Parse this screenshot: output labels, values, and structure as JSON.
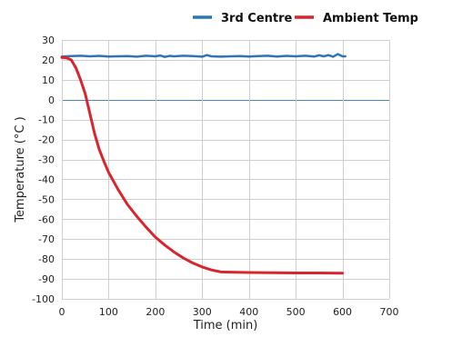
{
  "chart_data": {
    "type": "line",
    "title": "",
    "xlabel": "Time (min)",
    "ylabel": "Temperature (°C )",
    "xlim": [
      0,
      700
    ],
    "ylim": [
      -100,
      30
    ],
    "x_ticks": [
      0,
      100,
      200,
      300,
      400,
      500,
      600,
      700
    ],
    "y_ticks": [
      30,
      20,
      10,
      0,
      -10,
      -20,
      -30,
      -40,
      -50,
      -60,
      -70,
      -80,
      -90,
      -100
    ],
    "grid": true,
    "legend_position": "top-right",
    "series": [
      {
        "name": "3rd Centre",
        "color": "#2e75b6",
        "points": [
          [
            0,
            21.7
          ],
          [
            20,
            21.9
          ],
          [
            40,
            22.1
          ],
          [
            60,
            21.8
          ],
          [
            80,
            22.0
          ],
          [
            100,
            21.7
          ],
          [
            120,
            21.8
          ],
          [
            140,
            21.9
          ],
          [
            160,
            21.6
          ],
          [
            180,
            22.1
          ],
          [
            200,
            21.8
          ],
          [
            210,
            22.2
          ],
          [
            220,
            21.5
          ],
          [
            230,
            22.0
          ],
          [
            240,
            21.8
          ],
          [
            260,
            22.1
          ],
          [
            280,
            21.9
          ],
          [
            300,
            21.6
          ],
          [
            310,
            22.4
          ],
          [
            320,
            21.8
          ],
          [
            340,
            21.6
          ],
          [
            360,
            21.8
          ],
          [
            380,
            21.9
          ],
          [
            400,
            21.7
          ],
          [
            420,
            21.9
          ],
          [
            440,
            22.1
          ],
          [
            460,
            21.7
          ],
          [
            480,
            22.0
          ],
          [
            500,
            21.8
          ],
          [
            520,
            22.1
          ],
          [
            540,
            21.7
          ],
          [
            550,
            22.3
          ],
          [
            560,
            21.8
          ],
          [
            570,
            22.4
          ],
          [
            580,
            21.6
          ],
          [
            590,
            22.9
          ],
          [
            600,
            21.8
          ],
          [
            606,
            21.8
          ]
        ]
      },
      {
        "name": "Ambient Temp",
        "color": "#d7262e",
        "points": [
          [
            0,
            21.2
          ],
          [
            10,
            21.0
          ],
          [
            20,
            20.0
          ],
          [
            30,
            16.0
          ],
          [
            40,
            10.0
          ],
          [
            50,
            3.0
          ],
          [
            60,
            -7.0
          ],
          [
            70,
            -17.0
          ],
          [
            80,
            -25.0
          ],
          [
            90,
            -31.0
          ],
          [
            100,
            -36.5
          ],
          [
            120,
            -45.0
          ],
          [
            140,
            -52.5
          ],
          [
            160,
            -58.5
          ],
          [
            180,
            -64.0
          ],
          [
            200,
            -69.0
          ],
          [
            220,
            -73.0
          ],
          [
            240,
            -76.5
          ],
          [
            260,
            -79.5
          ],
          [
            280,
            -82.0
          ],
          [
            300,
            -84.0
          ],
          [
            320,
            -85.5
          ],
          [
            340,
            -86.5
          ],
          [
            360,
            -86.6
          ],
          [
            400,
            -86.8
          ],
          [
            450,
            -86.9
          ],
          [
            500,
            -87.0
          ],
          [
            550,
            -87.0
          ],
          [
            600,
            -87.1
          ]
        ]
      }
    ]
  }
}
